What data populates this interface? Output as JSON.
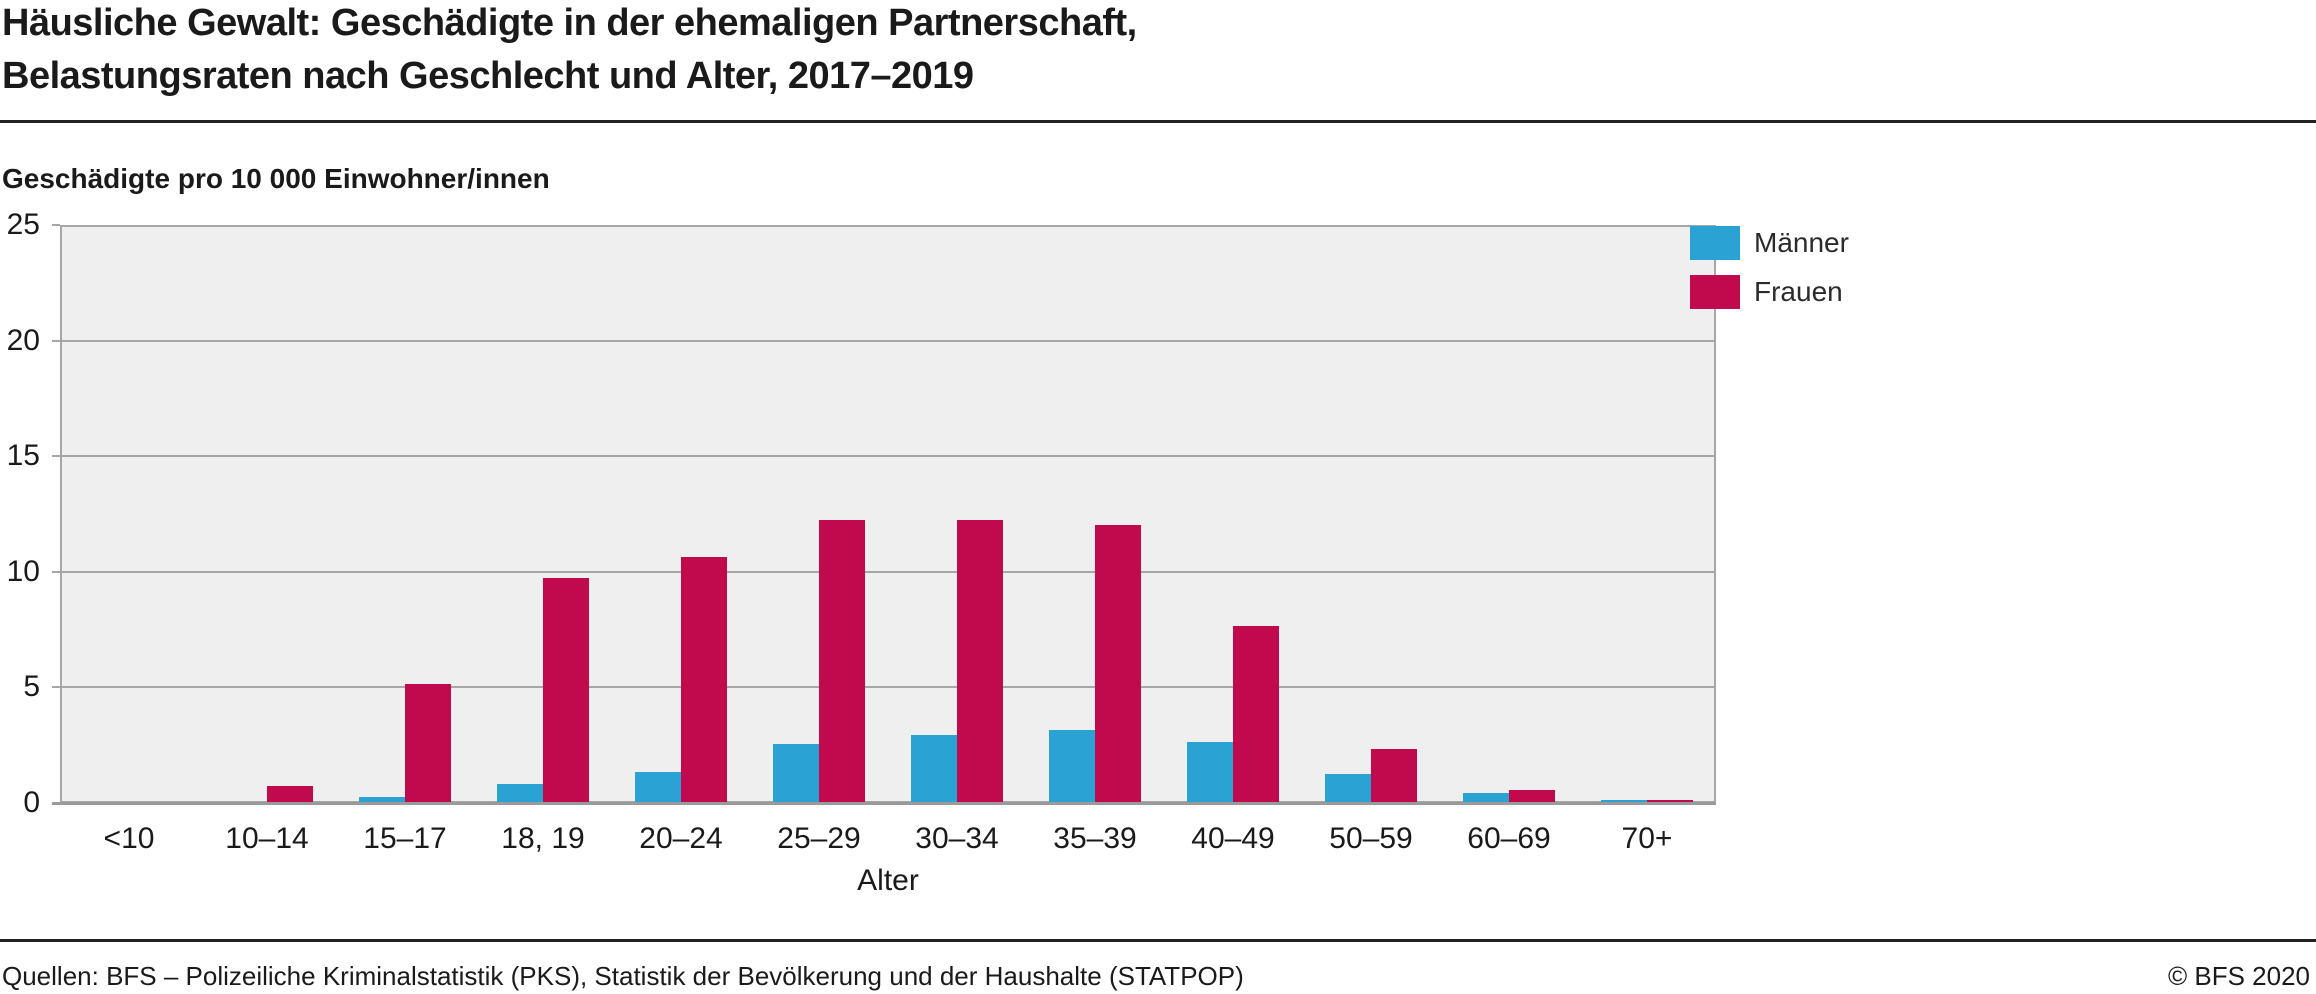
{
  "page": {
    "title_line1": "Häusliche Gewalt: Geschädigte in der ehemaligen Partnerschaft,",
    "title_line2": "Belastungsraten nach Geschlecht und Alter, 2017–2019",
    "footer_source": "Quellen: BFS – Polizeiliche Kriminalstatistik (PKS), Statistik der Bevölkerung und der Haushalte (STATPOP)",
    "footer_copyright": "© BFS 2020"
  },
  "chart_data": {
    "type": "bar",
    "title": "Häusliche Gewalt: Geschädigte in der ehemaligen Partnerschaft, Belastungsraten nach Geschlecht und Alter, 2017–2019",
    "unit_label": "Geschädigte pro 10 000 Einwohner/innen",
    "xlabel": "Alter",
    "ylabel": "Geschädigte pro 10 000 Einwohner/innen",
    "categories": [
      "<10",
      "10–14",
      "15–17",
      "18, 19",
      "20–24",
      "25–29",
      "30–34",
      "35–39",
      "40–49",
      "50–59",
      "60–69",
      "70+"
    ],
    "series": [
      {
        "name": "Männer",
        "key": "maenner",
        "color": "#2aa2d4",
        "values": [
          0,
          0,
          0.2,
          0.8,
          1.3,
          2.5,
          2.9,
          3.1,
          2.6,
          1.2,
          0.4,
          0.1
        ]
      },
      {
        "name": "Frauen",
        "key": "frauen",
        "color": "#c00a4d",
        "values": [
          0,
          0.7,
          5.1,
          9.7,
          10.6,
          12.2,
          12.2,
          12.0,
          7.6,
          2.3,
          0.5,
          0.1
        ]
      }
    ],
    "ylim": [
      0,
      25
    ],
    "yticks": [
      0,
      5,
      10,
      15,
      20,
      25
    ],
    "grid": true,
    "legend_position": "top-right",
    "plot_background": "#efefef",
    "gridline_color": "#a6a6a6"
  }
}
